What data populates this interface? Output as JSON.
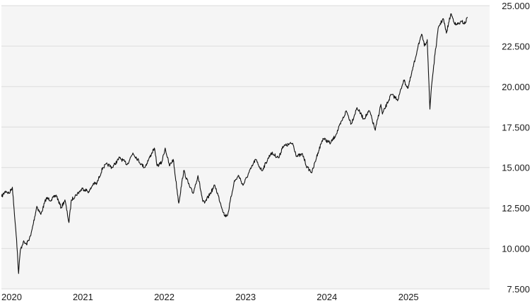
{
  "chart_data": {
    "type": "line",
    "title": "",
    "xlabel": "",
    "ylabel": "",
    "colors": {
      "background": "#f5f5f5",
      "grid": "#dcdcdc",
      "line": "#111111"
    },
    "grid": true,
    "y_axis_position": "right",
    "ylim": [
      7500,
      25000
    ],
    "xlim": [
      "2020-01-01",
      "2025-12-31"
    ],
    "y_ticks": [
      {
        "value": 7500,
        "label": "7.500"
      },
      {
        "value": 10000,
        "label": "10.000"
      },
      {
        "value": 12500,
        "label": "12.500"
      },
      {
        "value": 15000,
        "label": "15.000"
      },
      {
        "value": 17500,
        "label": "17.500"
      },
      {
        "value": 20000,
        "label": "20.000"
      },
      {
        "value": 22500,
        "label": "22.500"
      },
      {
        "value": 25000,
        "label": "25.000"
      }
    ],
    "x_ticks": [
      {
        "value": "2020-01-01",
        "label": "2020"
      },
      {
        "value": "2021-01-01",
        "label": "2021"
      },
      {
        "value": "2022-01-01",
        "label": "2022"
      },
      {
        "value": "2023-01-01",
        "label": "2023"
      },
      {
        "value": "2024-01-01",
        "label": "2024"
      },
      {
        "value": "2025-01-01",
        "label": "2025"
      }
    ],
    "series": [
      {
        "points": [
          [
            "2020-01-02",
            13200
          ],
          [
            "2020-01-20",
            13550
          ],
          [
            "2020-02-05",
            13400
          ],
          [
            "2020-02-19",
            13780
          ],
          [
            "2020-02-27",
            12400
          ],
          [
            "2020-03-09",
            10600
          ],
          [
            "2020-03-18",
            8450
          ],
          [
            "2020-03-26",
            9900
          ],
          [
            "2020-04-08",
            10400
          ],
          [
            "2020-04-22",
            10250
          ],
          [
            "2020-05-12",
            10800
          ],
          [
            "2020-06-08",
            12600
          ],
          [
            "2020-06-26",
            12100
          ],
          [
            "2020-07-20",
            13100
          ],
          [
            "2020-08-12",
            13000
          ],
          [
            "2020-09-03",
            13300
          ],
          [
            "2020-09-25",
            12500
          ],
          [
            "2020-10-12",
            13000
          ],
          [
            "2020-10-30",
            11600
          ],
          [
            "2020-11-10",
            13000
          ],
          [
            "2020-12-01",
            13300
          ],
          [
            "2020-12-30",
            13700
          ],
          [
            "2021-01-29",
            13500
          ],
          [
            "2021-02-16",
            14000
          ],
          [
            "2021-03-04",
            14000
          ],
          [
            "2021-03-31",
            15000
          ],
          [
            "2021-04-20",
            15200
          ],
          [
            "2021-05-12",
            15000
          ],
          [
            "2021-06-15",
            15600
          ],
          [
            "2021-07-19",
            15200
          ],
          [
            "2021-08-13",
            15900
          ],
          [
            "2021-09-20",
            15200
          ],
          [
            "2021-10-05",
            15000
          ],
          [
            "2021-11-17",
            16200
          ],
          [
            "2021-11-30",
            15100
          ],
          [
            "2021-12-20",
            15300
          ],
          [
            "2022-01-05",
            16200
          ],
          [
            "2022-01-24",
            15100
          ],
          [
            "2022-02-10",
            15500
          ],
          [
            "2022-03-07",
            12800
          ],
          [
            "2022-03-29",
            14800
          ],
          [
            "2022-04-25",
            13800
          ],
          [
            "2022-05-10",
            13400
          ],
          [
            "2022-06-01",
            14500
          ],
          [
            "2022-06-23",
            12900
          ],
          [
            "2022-07-01",
            12800
          ],
          [
            "2022-08-16",
            13900
          ],
          [
            "2022-09-29",
            12000
          ],
          [
            "2022-10-13",
            12100
          ],
          [
            "2022-11-10",
            14100
          ],
          [
            "2022-12-01",
            14500
          ],
          [
            "2022-12-20",
            13900
          ],
          [
            "2023-01-31",
            15100
          ],
          [
            "2023-02-14",
            15500
          ],
          [
            "2023-03-15",
            14800
          ],
          [
            "2023-04-25",
            15900
          ],
          [
            "2023-05-31",
            15600
          ],
          [
            "2023-06-16",
            16300
          ],
          [
            "2023-07-31",
            16500
          ],
          [
            "2023-08-18",
            15700
          ],
          [
            "2023-09-14",
            15800
          ],
          [
            "2023-10-04",
            15000
          ],
          [
            "2023-10-26",
            14700
          ],
          [
            "2023-11-21",
            15900
          ],
          [
            "2023-12-14",
            16800
          ],
          [
            "2024-01-17",
            16500
          ],
          [
            "2024-02-09",
            17000
          ],
          [
            "2024-03-28",
            18500
          ],
          [
            "2024-04-19",
            17700
          ],
          [
            "2024-05-15",
            18700
          ],
          [
            "2024-06-14",
            18000
          ],
          [
            "2024-07-10",
            18500
          ],
          [
            "2024-08-05",
            17300
          ],
          [
            "2024-08-30",
            18900
          ],
          [
            "2024-09-06",
            18300
          ],
          [
            "2024-10-15",
            19500
          ],
          [
            "2024-11-15",
            19200
          ],
          [
            "2024-12-10",
            20400
          ],
          [
            "2024-12-30",
            19900
          ],
          [
            "2025-01-31",
            21700
          ],
          [
            "2025-02-14",
            22600
          ],
          [
            "2025-03-03",
            23200
          ],
          [
            "2025-03-13",
            22500
          ],
          [
            "2025-03-26",
            22900
          ],
          [
            "2025-04-07",
            18600
          ],
          [
            "2025-04-14",
            20000
          ],
          [
            "2025-04-30",
            22000
          ],
          [
            "2025-05-16",
            23700
          ],
          [
            "2025-06-06",
            24200
          ],
          [
            "2025-06-20",
            23300
          ],
          [
            "2025-07-10",
            24500
          ],
          [
            "2025-08-01",
            23800
          ],
          [
            "2025-08-29",
            24000
          ],
          [
            "2025-09-12",
            23900
          ],
          [
            "2025-09-22",
            24300
          ]
        ]
      }
    ]
  }
}
